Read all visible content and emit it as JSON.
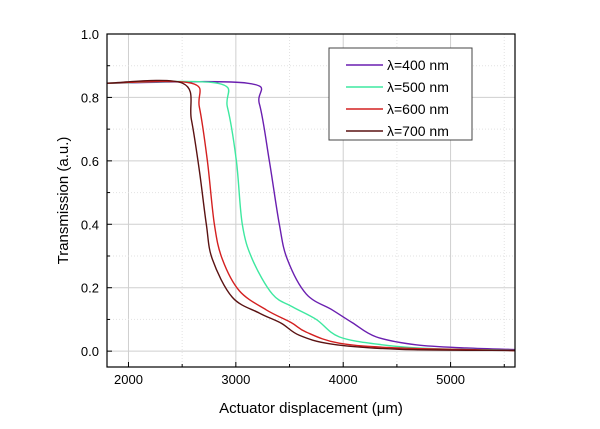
{
  "chart_data": {
    "type": "line",
    "title": "",
    "xlabel": "Actuator displacement (μm)",
    "ylabel": "Transmission (a.u.)",
    "xlim": [
      1800,
      5600
    ],
    "ylim": [
      -0.05,
      1.0
    ],
    "xticks": [
      2000,
      3000,
      4000,
      5000
    ],
    "yticks": [
      0.0,
      0.2,
      0.4,
      0.6,
      0.8,
      1.0
    ],
    "ytick_labels": [
      "0.0",
      "0.2",
      "0.4",
      "0.6",
      "0.8",
      "1.0"
    ],
    "grid": true,
    "legend_position": "top-right",
    "series": [
      {
        "name": "λ=400 nm",
        "color": "#6a1fb0",
        "x": [
          1800,
          3107,
          3219,
          3312,
          3405,
          3479,
          3656,
          3898,
          4084,
          4307,
          4679,
          5144,
          5600
        ],
        "y": [
          0.845,
          0.845,
          0.78,
          0.6,
          0.4,
          0.29,
          0.18,
          0.13,
          0.09,
          0.045,
          0.02,
          0.01,
          0.005
        ]
      },
      {
        "name": "λ=500 nm",
        "color": "#3ee8a0",
        "x": [
          1800,
          2828,
          2921,
          3005,
          3060,
          3153,
          3340,
          3526,
          3749,
          3963,
          4363,
          4828,
          5600
        ],
        "y": [
          0.845,
          0.845,
          0.77,
          0.6,
          0.4,
          0.29,
          0.18,
          0.14,
          0.1,
          0.045,
          0.02,
          0.008,
          0.003
        ]
      },
      {
        "name": "λ=600 nm",
        "color": "#d42020",
        "x": [
          1800,
          2586,
          2660,
          2735,
          2800,
          2874,
          3033,
          3284,
          3516,
          3656,
          3963,
          4521,
          5600
        ],
        "y": [
          0.845,
          0.845,
          0.77,
          0.6,
          0.4,
          0.29,
          0.19,
          0.13,
          0.09,
          0.06,
          0.025,
          0.01,
          0.002
        ]
      },
      {
        "name": "λ=700 nm",
        "color": "#5a1212",
        "x": [
          1800,
          2502,
          2586,
          2660,
          2725,
          2781,
          2967,
          3219,
          3423,
          3591,
          3898,
          4521,
          5600
        ],
        "y": [
          0.845,
          0.845,
          0.73,
          0.57,
          0.4,
          0.29,
          0.17,
          0.12,
          0.088,
          0.05,
          0.022,
          0.006,
          0.002
        ]
      }
    ]
  }
}
